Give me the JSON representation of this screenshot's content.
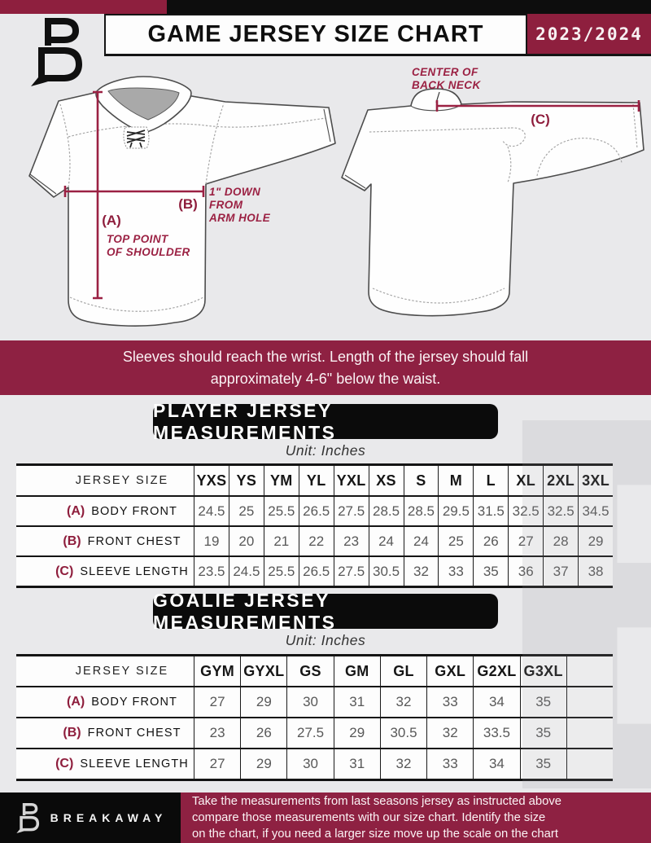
{
  "header": {
    "title": "GAME JERSEY SIZE CHART",
    "season": "2023/2024",
    "logo_icon": "breakaway-b-logo"
  },
  "diagram": {
    "front_labels": {
      "a_tag": "(A)",
      "a_note1": "TOP POINT",
      "a_note2": "OF SHOULDER",
      "b_tag": "(B)",
      "b_note1": "1\" DOWN",
      "b_note2": "FROM",
      "b_note3": "ARM HOLE"
    },
    "back_labels": {
      "neck1": "CENTER OF",
      "neck2": "BACK NECK",
      "c_tag": "(C)"
    }
  },
  "banner": {
    "line1": "Sleeves should reach the wrist. Length of the jersey should fall",
    "line2": "approximately 4-6\" below the waist."
  },
  "player_section": {
    "heading": "PLAYER JERSEY MEASUREMENTS",
    "unit": "Unit: Inches",
    "table": {
      "corner_label": "JERSEY SIZE",
      "columns": [
        "YXS",
        "YS",
        "YM",
        "YL",
        "YXL",
        "XS",
        "S",
        "M",
        "L",
        "XL",
        "2XL",
        "3XL"
      ],
      "rows": [
        {
          "tag": "(A)",
          "label": "BODY FRONT",
          "values": [
            "24.5",
            "25",
            "25.5",
            "26.5",
            "27.5",
            "28.5",
            "28.5",
            "29.5",
            "31.5",
            "32.5",
            "32.5",
            "34.5"
          ]
        },
        {
          "tag": "(B)",
          "label": "FRONT CHEST",
          "values": [
            "19",
            "20",
            "21",
            "22",
            "23",
            "24",
            "24",
            "25",
            "26",
            "27",
            "28",
            "29"
          ]
        },
        {
          "tag": "(C)",
          "label": "SLEEVE LENGTH",
          "values": [
            "23.5",
            "24.5",
            "25.5",
            "26.5",
            "27.5",
            "30.5",
            "32",
            "33",
            "35",
            "36",
            "37",
            "38"
          ]
        }
      ]
    }
  },
  "goalie_section": {
    "heading": "GOALIE JERSEY MEASUREMENTS",
    "unit": "Unit: Inches",
    "table": {
      "corner_label": "JERSEY SIZE",
      "columns": [
        "GYM",
        "GYXL",
        "GS",
        "GM",
        "GL",
        "GXL",
        "G2XL",
        "G3XL",
        ""
      ],
      "rows": [
        {
          "tag": "(A)",
          "label": "BODY FRONT",
          "values": [
            "27",
            "29",
            "30",
            "31",
            "32",
            "33",
            "34",
            "35",
            ""
          ]
        },
        {
          "tag": "(B)",
          "label": "FRONT CHEST",
          "values": [
            "23",
            "26",
            "27.5",
            "29",
            "30.5",
            "32",
            "33.5",
            "35",
            ""
          ]
        },
        {
          "tag": "(C)",
          "label": "SLEEVE LENGTH",
          "values": [
            "27",
            "29",
            "30",
            "31",
            "32",
            "33",
            "34",
            "35",
            ""
          ]
        }
      ]
    }
  },
  "footer": {
    "brand": "BREAKAWAY",
    "logo_icon": "breakaway-b-logo",
    "note_line1": "Take the measurements from last seasons jersey as instructed above",
    "note_line2": "compare those measurements  with our size chart. Identify the size",
    "note_line3": "on the chart, if you need a larger size move up the scale on the chart"
  },
  "watermark_letter": "B",
  "colors": {
    "maroon": "#8e2142",
    "black": "#0d0d0d",
    "page_bg": "#e9e9eb",
    "annotation_red": "#9b2143"
  }
}
